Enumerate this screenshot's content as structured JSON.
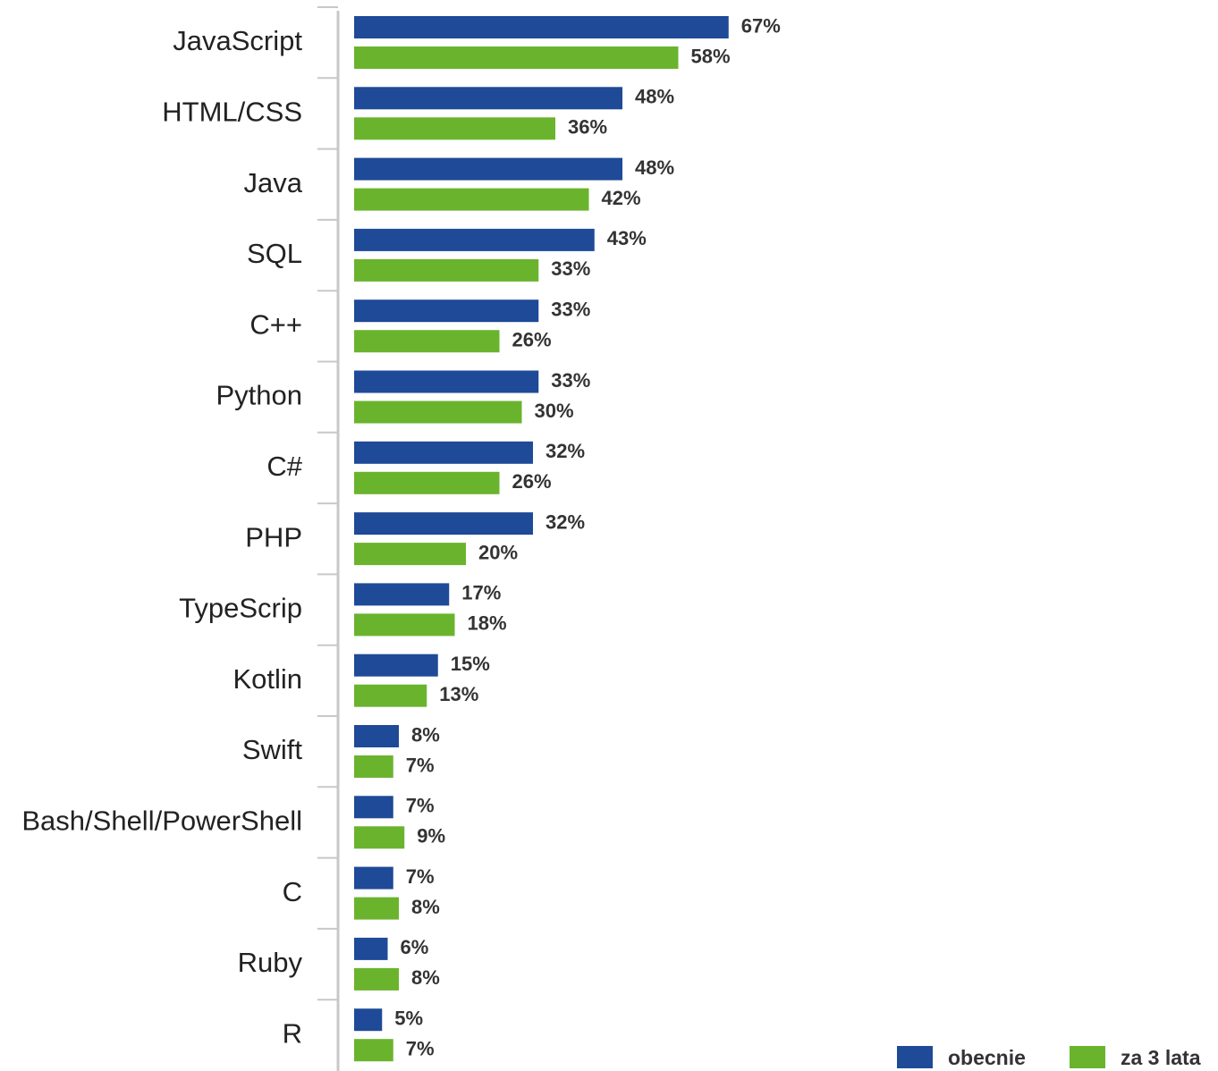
{
  "chart_data": {
    "type": "bar",
    "orientation": "horizontal",
    "categories": [
      "JavaScript",
      "HTML/CSS",
      "Java",
      "SQL",
      "C++",
      "Python",
      "C#",
      "PHP",
      "TypeScrip",
      "Kotlin",
      "Swift",
      "Bash/Shell/PowerShell",
      "C",
      "Ruby",
      "R"
    ],
    "series": [
      {
        "name": "obecnie",
        "color": "#1e4a97",
        "values": [
          67,
          48,
          48,
          43,
          33,
          33,
          32,
          32,
          17,
          15,
          8,
          7,
          7,
          6,
          5
        ],
        "value_labels": [
          "67%",
          "48%",
          "48%",
          "43%",
          "33%",
          "33%",
          "32%",
          "32%",
          "17%",
          "15%",
          "8%",
          "7%",
          "7%",
          "6%",
          "5%"
        ]
      },
      {
        "name": "za 3 lata",
        "color": "#6ab42d",
        "values": [
          58,
          36,
          42,
          33,
          26,
          30,
          26,
          20,
          18,
          13,
          7,
          9,
          8,
          8,
          7
        ],
        "value_labels": [
          "58%",
          "36%",
          "42%",
          "33%",
          "26%",
          "30%",
          "26%",
          "20%",
          "18%",
          "13%",
          "7%",
          "9%",
          "8%",
          "8%",
          "7%"
        ]
      }
    ],
    "xlim": [
      0,
      100
    ],
    "legend": "bottom-right"
  }
}
